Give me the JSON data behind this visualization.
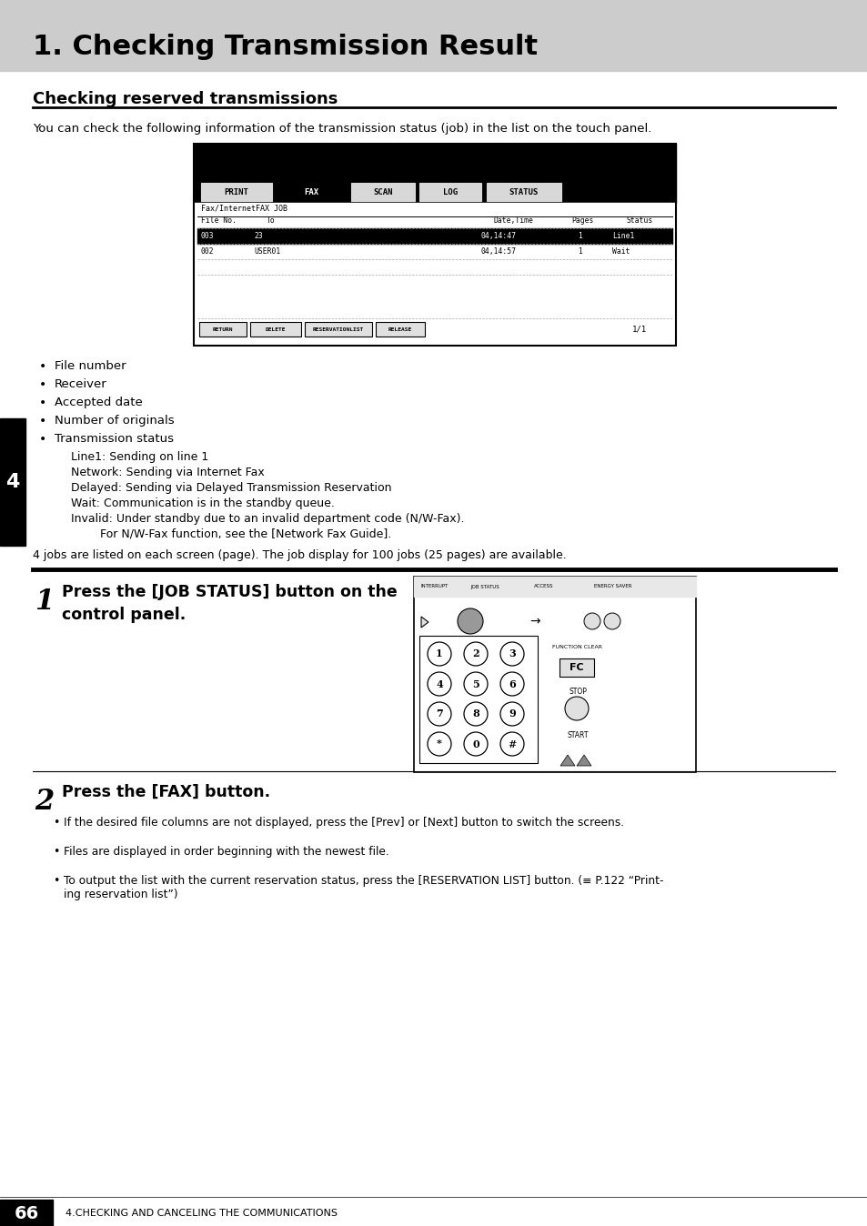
{
  "page_bg": "#ffffff",
  "header_bg": "#cccccc",
  "header_title": "1. Checking Transmission Result",
  "header_title_size": 22,
  "section_title": "Checking reserved transmissions",
  "section_title_size": 13,
  "body_text_intro": "You can check the following information of the transmission status (job) in the list on the touch panel.",
  "bullet_points": [
    "File number",
    "Receiver",
    "Accepted date",
    "Number of originals",
    "Transmission status"
  ],
  "sub_bullets": [
    "Line1: Sending on line 1",
    "Network: Sending via Internet Fax",
    "Delayed: Sending via Delayed Transmission Reservation",
    "Wait: Communication is in the standby queue.",
    "Invalid: Under standby due to an invalid department code (N/W-Fax).",
    "        For N/W-Fax function, see the [Network Fax Guide]."
  ],
  "footer_note": "4 jobs are listed on each screen (page). The job display for 100 jobs (25 pages) are available.",
  "step1_num": "1",
  "step1_text": "Press the [JOB STATUS] button on the\ncontrol panel.",
  "step2_num": "2",
  "step2_text": "Press the [FAX] button.",
  "step2_bullets": [
    "If the desired file columns are not displayed, press the [Prev] or [Next] button to switch the screens.",
    "Files are displayed in order beginning with the newest file.",
    "To output the list with the current reservation status, press the [RESERVATION LIST] button. (≡ P.122 “Print-\ning reservation list”)"
  ],
  "footer_page": "66",
  "footer_chapter": "4.CHECKING AND CANCELING THE COMMUNICATIONS",
  "side_tab_num": "4",
  "side_tab_bg": "#000000",
  "side_tab_text_color": "#ffffff"
}
